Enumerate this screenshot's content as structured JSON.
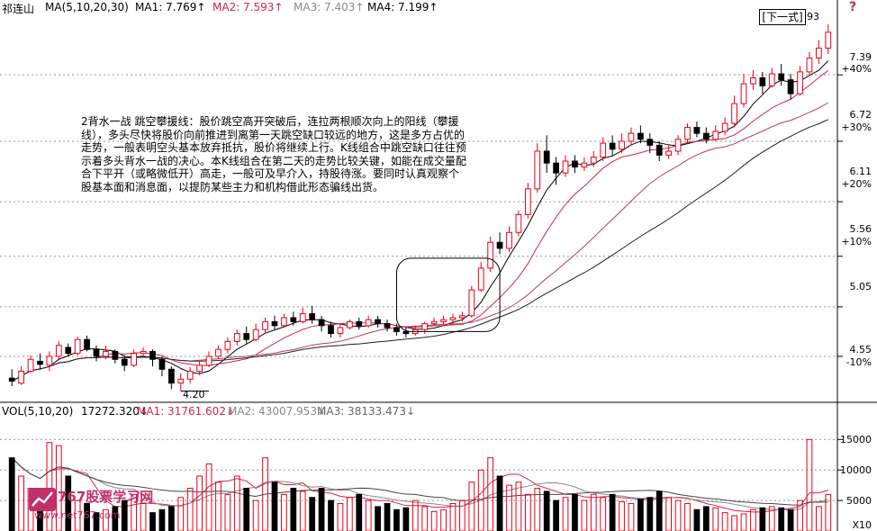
{
  "header": {
    "stock_name": "祁连山",
    "ma_label": "MA(5,10,20,30)",
    "ma1": "MA1: 7.769↑",
    "ma2": "MA2: 7.593↑",
    "ma3": "MA3: 7.403↑",
    "ma4": "MA4: 7.199↑"
  },
  "next_button": "[下一式]",
  "corner_value": "93",
  "annotation": "2背水一战 跳空攀援线：股价跳空高开突破后，连拉两根顺次向上的阳线（攀援线），多头尽快将股价向前推进到离第一天跳空缺口较远的地方，这是多方占优的走势，一般表明空头基本放弃抵抗，股价将继续上行。K线组合中跳空缺口往往预示着多头背水一战的决心。本K线组合在第二天的走势比较关键，如能在成交量配合下平开（或略微低开）高走，一般可及早介入，持股待涨。要同时认真观察个股基本面和消息面，以提防某些主力和机构借此形态骗线出货。",
  "low_marker": "4.20",
  "volume_header": {
    "label": "VOL(5,10,20)",
    "value": "17272.320↓",
    "ma1": "MA1: 31761.602↓",
    "ma2": "MA2: 43007.953↓",
    "ma3": "MA3: 38133.473↓"
  },
  "price_axis": [
    {
      "price": "7.39",
      "pct": "+40%"
    },
    {
      "price": "6.72",
      "pct": "+30%"
    },
    {
      "price": "6.11",
      "pct": "+20%"
    },
    {
      "price": "5.56",
      "pct": "+10%"
    },
    {
      "price": "5.05",
      "pct": ""
    },
    {
      "price": "4.55",
      "pct": "-10%"
    }
  ],
  "volume_axis": [
    "15000",
    "10000",
    "5000",
    "X10"
  ],
  "watermark": {
    "brand": "767股票学习网",
    "url": "www.net767.com"
  },
  "colors": {
    "up": "#e8001c",
    "down": "#000000",
    "ma1": "#000000",
    "ma2": "#d0254a",
    "ma3": "#b04060",
    "ma4": "#202020",
    "grid": "#999999"
  },
  "chart_data": {
    "type": "candlestick",
    "ylim": [
      4.15,
      8.0
    ],
    "volume_ylim": [
      0,
      18000
    ],
    "candles": [
      [
        4.33,
        4.3,
        4.42,
        4.25
      ],
      [
        4.28,
        4.4,
        4.45,
        4.26
      ],
      [
        4.4,
        4.52,
        4.56,
        4.38
      ],
      [
        4.5,
        4.47,
        4.58,
        4.42
      ],
      [
        4.46,
        4.55,
        4.6,
        4.4
      ],
      [
        4.55,
        4.66,
        4.7,
        4.52
      ],
      [
        4.64,
        4.58,
        4.68,
        4.55
      ],
      [
        4.58,
        4.72,
        4.75,
        4.56
      ],
      [
        4.72,
        4.62,
        4.76,
        4.6
      ],
      [
        4.62,
        4.55,
        4.66,
        4.5
      ],
      [
        4.55,
        4.6,
        4.66,
        4.52
      ],
      [
        4.6,
        4.52,
        4.62,
        4.48
      ],
      [
        4.52,
        4.46,
        4.56,
        4.4
      ],
      [
        4.46,
        4.58,
        4.62,
        4.44
      ],
      [
        4.58,
        4.6,
        4.64,
        4.54
      ],
      [
        4.6,
        4.52,
        4.62,
        4.45
      ],
      [
        4.52,
        4.42,
        4.55,
        4.35
      ],
      [
        4.42,
        4.28,
        4.45,
        4.22
      ],
      [
        4.28,
        4.32,
        4.38,
        4.2
      ],
      [
        4.32,
        4.4,
        4.44,
        4.28
      ],
      [
        4.4,
        4.46,
        4.5,
        4.36
      ],
      [
        4.46,
        4.55,
        4.6,
        4.44
      ],
      [
        4.55,
        4.62,
        4.66,
        4.52
      ],
      [
        4.62,
        4.7,
        4.74,
        4.58
      ],
      [
        4.7,
        4.78,
        4.82,
        4.66
      ],
      [
        4.78,
        4.72,
        4.85,
        4.68
      ],
      [
        4.72,
        4.82,
        4.88,
        4.7
      ],
      [
        4.82,
        4.9,
        4.94,
        4.78
      ],
      [
        4.9,
        4.86,
        4.96,
        4.82
      ],
      [
        4.86,
        4.94,
        4.98,
        4.84
      ],
      [
        4.94,
        4.9,
        5.0,
        4.86
      ],
      [
        4.9,
        4.98,
        5.04,
        4.88
      ],
      [
        4.98,
        4.92,
        5.06,
        4.88
      ],
      [
        4.92,
        4.86,
        4.96,
        4.8
      ],
      [
        4.86,
        4.78,
        4.9,
        4.74
      ],
      [
        4.78,
        4.84,
        4.88,
        4.74
      ],
      [
        4.84,
        4.9,
        4.92,
        4.82
      ],
      [
        4.9,
        4.86,
        4.94,
        4.82
      ],
      [
        4.86,
        4.92,
        4.96,
        4.84
      ],
      [
        4.92,
        4.88,
        4.96,
        4.84
      ],
      [
        4.88,
        4.84,
        4.92,
        4.8
      ],
      [
        4.84,
        4.8,
        4.88,
        4.76
      ],
      [
        4.8,
        4.78,
        4.84,
        4.74
      ],
      [
        4.78,
        4.82,
        4.86,
        4.76
      ],
      [
        4.82,
        4.88,
        4.9,
        4.78
      ],
      [
        4.88,
        4.9,
        4.94,
        4.86
      ],
      [
        4.9,
        4.92,
        4.96,
        4.86
      ],
      [
        4.92,
        4.94,
        4.98,
        4.88
      ],
      [
        4.94,
        4.96,
        5.0,
        4.9
      ],
      [
        4.96,
        5.22,
        5.26,
        4.94
      ],
      [
        5.22,
        5.44,
        5.5,
        5.2
      ],
      [
        5.44,
        5.7,
        5.76,
        5.4
      ],
      [
        5.7,
        5.64,
        5.8,
        5.58
      ],
      [
        5.64,
        5.8,
        5.86,
        5.6
      ],
      [
        5.8,
        5.98,
        6.02,
        5.76
      ],
      [
        5.98,
        6.24,
        6.3,
        5.94
      ],
      [
        6.24,
        6.62,
        6.7,
        6.2
      ],
      [
        6.62,
        6.5,
        6.78,
        6.4
      ],
      [
        6.5,
        6.4,
        6.56,
        6.28
      ],
      [
        6.4,
        6.52,
        6.58,
        6.36
      ],
      [
        6.52,
        6.46,
        6.58,
        6.4
      ],
      [
        6.46,
        6.5,
        6.56,
        6.42
      ],
      [
        6.5,
        6.56,
        6.62,
        6.46
      ],
      [
        6.56,
        6.7,
        6.76,
        6.52
      ],
      [
        6.7,
        6.64,
        6.78,
        6.58
      ],
      [
        6.64,
        6.72,
        6.8,
        6.6
      ],
      [
        6.72,
        6.8,
        6.86,
        6.68
      ],
      [
        6.8,
        6.74,
        6.88,
        6.7
      ],
      [
        6.74,
        6.68,
        6.8,
        6.6
      ],
      [
        6.68,
        6.58,
        6.72,
        6.52
      ],
      [
        6.58,
        6.62,
        6.68,
        6.54
      ],
      [
        6.62,
        6.74,
        6.78,
        6.58
      ],
      [
        6.74,
        6.86,
        6.9,
        6.7
      ],
      [
        6.86,
        6.8,
        6.92,
        6.76
      ],
      [
        6.8,
        6.74,
        6.86,
        6.7
      ],
      [
        6.74,
        6.82,
        6.88,
        6.72
      ],
      [
        6.82,
        6.9,
        6.96,
        6.78
      ],
      [
        6.9,
        7.1,
        7.18,
        6.86
      ],
      [
        7.1,
        7.3,
        7.4,
        7.06
      ],
      [
        7.3,
        7.36,
        7.44,
        7.24
      ],
      [
        7.36,
        7.28,
        7.42,
        7.2
      ],
      [
        7.28,
        7.4,
        7.46,
        7.26
      ],
      [
        7.4,
        7.34,
        7.5,
        7.28
      ],
      [
        7.34,
        7.2,
        7.4,
        7.14
      ],
      [
        7.2,
        7.42,
        7.48,
        7.18
      ],
      [
        7.42,
        7.56,
        7.62,
        7.38
      ],
      [
        7.56,
        7.66,
        7.74,
        7.5
      ],
      [
        7.66,
        7.82,
        7.9,
        7.6
      ]
    ],
    "volume": [
      12000,
      9000,
      7000,
      6500,
      14500,
      14000,
      9000,
      5000,
      4500,
      3000,
      3500,
      4000,
      5000,
      6000,
      4500,
      3000,
      3500,
      4000,
      5500,
      7000,
      9000,
      11000,
      8000,
      6000,
      9000,
      7000,
      5000,
      12000,
      8000,
      6000,
      7000,
      6500,
      5500,
      7000,
      5000,
      4500,
      5500,
      6000,
      5000,
      4000,
      4500,
      3500,
      3800,
      5000,
      4000,
      3200,
      3500,
      4500,
      5000,
      8000,
      10000,
      12000,
      9000,
      7500,
      8000,
      6000,
      7000,
      6500,
      5000,
      5500,
      6000,
      5000,
      6000,
      5500,
      6000,
      4800,
      4500,
      5200,
      5500,
      6500,
      5500,
      5000,
      4500,
      3500,
      4000,
      3800,
      3000,
      2500,
      2800,
      3500,
      3800,
      4000,
      3800,
      3500,
      5000,
      15000,
      4000,
      6000
    ]
  }
}
